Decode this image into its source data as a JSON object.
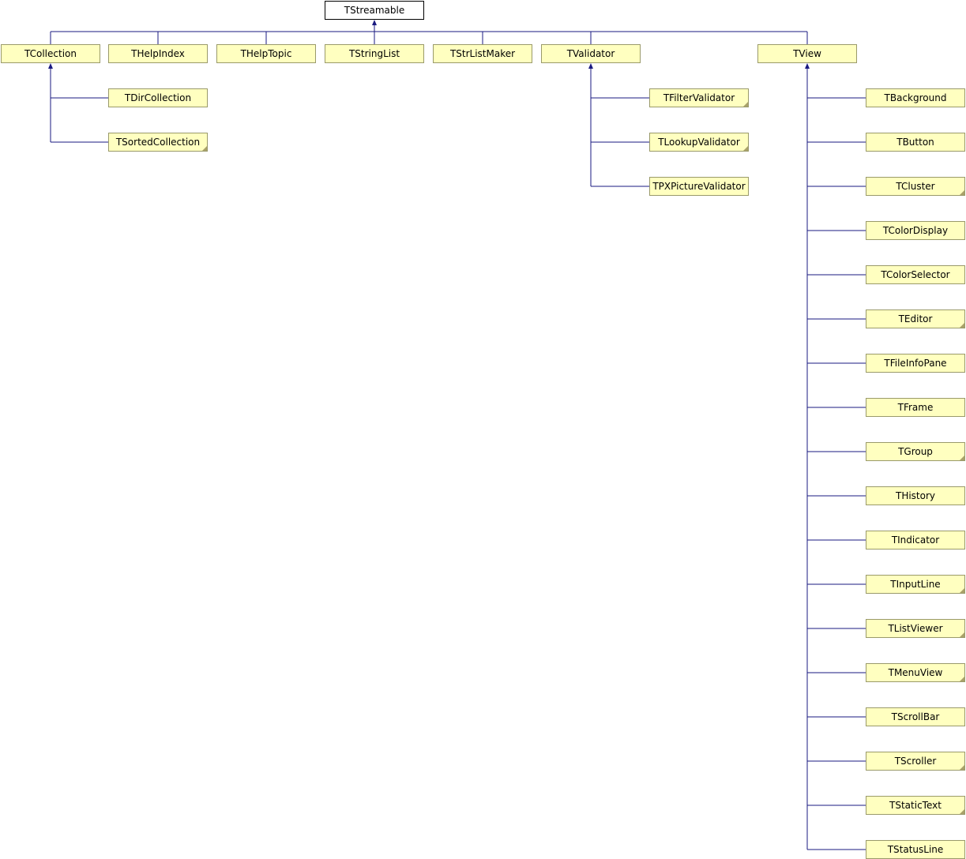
{
  "diagram": {
    "type": "class-inheritance",
    "edge_color": "#1a1a80",
    "node_fill": "#ffffc0",
    "root_fill": "#ffffff",
    "nodes": [
      {
        "id": "TStreamable",
        "label": "TStreamable",
        "root": true,
        "parent": null
      },
      {
        "id": "TCollection",
        "label": "TCollection",
        "parent": "TStreamable"
      },
      {
        "id": "THelpIndex",
        "label": "THelpIndex",
        "parent": "TStreamable"
      },
      {
        "id": "THelpTopic",
        "label": "THelpTopic",
        "parent": "TStreamable"
      },
      {
        "id": "TStringList",
        "label": "TStringList",
        "parent": "TStreamable"
      },
      {
        "id": "TStrListMaker",
        "label": "TStrListMaker",
        "parent": "TStreamable"
      },
      {
        "id": "TValidator",
        "label": "TValidator",
        "parent": "TStreamable"
      },
      {
        "id": "TView",
        "label": "TView",
        "parent": "TStreamable"
      },
      {
        "id": "TDirCollection",
        "label": "TDirCollection",
        "parent": "TCollection"
      },
      {
        "id": "TSortedCollection",
        "label": "TSortedCollection",
        "parent": "TCollection",
        "fold": true
      },
      {
        "id": "TFilterValidator",
        "label": "TFilterValidator",
        "parent": "TValidator",
        "fold": true
      },
      {
        "id": "TLookupValidator",
        "label": "TLookupValidator",
        "parent": "TValidator",
        "fold": true
      },
      {
        "id": "TPXPictureValidator",
        "label": "TPXPictureValidator",
        "parent": "TValidator"
      },
      {
        "id": "TBackground",
        "label": "TBackground",
        "parent": "TView"
      },
      {
        "id": "TButton",
        "label": "TButton",
        "parent": "TView"
      },
      {
        "id": "TCluster",
        "label": "TCluster",
        "parent": "TView",
        "fold": true
      },
      {
        "id": "TColorDisplay",
        "label": "TColorDisplay",
        "parent": "TView"
      },
      {
        "id": "TColorSelector",
        "label": "TColorSelector",
        "parent": "TView"
      },
      {
        "id": "TEditor",
        "label": "TEditor",
        "parent": "TView",
        "fold": true
      },
      {
        "id": "TFileInfoPane",
        "label": "TFileInfoPane",
        "parent": "TView"
      },
      {
        "id": "TFrame",
        "label": "TFrame",
        "parent": "TView"
      },
      {
        "id": "TGroup",
        "label": "TGroup",
        "parent": "TView",
        "fold": true
      },
      {
        "id": "THistory",
        "label": "THistory",
        "parent": "TView"
      },
      {
        "id": "TIndicator",
        "label": "TIndicator",
        "parent": "TView"
      },
      {
        "id": "TInputLine",
        "label": "TInputLine",
        "parent": "TView",
        "fold": true
      },
      {
        "id": "TListViewer",
        "label": "TListViewer",
        "parent": "TView",
        "fold": true
      },
      {
        "id": "TMenuView",
        "label": "TMenuView",
        "parent": "TView",
        "fold": true
      },
      {
        "id": "TScrollBar",
        "label": "TScrollBar",
        "parent": "TView"
      },
      {
        "id": "TScroller",
        "label": "TScroller",
        "parent": "TView",
        "fold": true
      },
      {
        "id": "TStaticText",
        "label": "TStaticText",
        "parent": "TView",
        "fold": true
      },
      {
        "id": "TStatusLine",
        "label": "TStatusLine",
        "parent": "TView"
      }
    ]
  }
}
